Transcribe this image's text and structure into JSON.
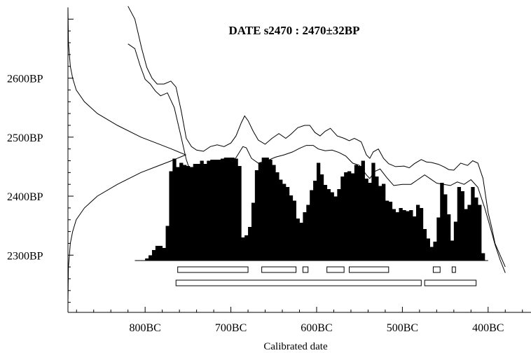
{
  "chart_data": {
    "type": "area",
    "title": "DATE s2470 : 2470±32BP",
    "xlabel": "Calibrated date",
    "ylabel": "",
    "xlim": [
      890,
      350
    ],
    "ylim": [
      2203,
      2717
    ],
    "x_ticks": [
      {
        "value": 800,
        "label": "800BC"
      },
      {
        "value": 700,
        "label": "700BC"
      },
      {
        "value": 600,
        "label": "600BC"
      },
      {
        "value": 500,
        "label": "500BC"
      },
      {
        "value": 400,
        "label": "400BC"
      }
    ],
    "y_ticks": [
      {
        "value": 2600,
        "label": "2600BP"
      },
      {
        "value": 2500,
        "label": "2500BP"
      },
      {
        "value": 2400,
        "label": "2400BP"
      },
      {
        "value": 2300,
        "label": "2300BP"
      }
    ],
    "calibration_curve": {
      "upper": [
        [
          820,
          2722
        ],
        [
          812,
          2700
        ],
        [
          804,
          2650
        ],
        [
          798,
          2618
        ],
        [
          792,
          2600
        ],
        [
          786,
          2590
        ],
        [
          778,
          2590
        ],
        [
          770,
          2595
        ],
        [
          764,
          2585
        ],
        [
          758,
          2545
        ],
        [
          752,
          2498
        ],
        [
          746,
          2484
        ],
        [
          740,
          2478
        ],
        [
          732,
          2476
        ],
        [
          724,
          2484
        ],
        [
          716,
          2487
        ],
        [
          708,
          2484
        ],
        [
          700,
          2490
        ],
        [
          694,
          2502
        ],
        [
          688,
          2524
        ],
        [
          684,
          2536
        ],
        [
          680,
          2528
        ],
        [
          674,
          2510
        ],
        [
          668,
          2495
        ],
        [
          660,
          2488
        ],
        [
          652,
          2498
        ],
        [
          644,
          2506
        ],
        [
          636,
          2498
        ],
        [
          630,
          2505
        ],
        [
          622,
          2516
        ],
        [
          614,
          2520
        ],
        [
          608,
          2520
        ],
        [
          602,
          2508
        ],
        [
          596,
          2502
        ],
        [
          590,
          2510
        ],
        [
          584,
          2515
        ],
        [
          576,
          2502
        ],
        [
          568,
          2498
        ],
        [
          562,
          2494
        ],
        [
          556,
          2498
        ],
        [
          548,
          2492
        ],
        [
          542,
          2470
        ],
        [
          538,
          2464
        ],
        [
          534,
          2475
        ],
        [
          528,
          2480
        ],
        [
          522,
          2464
        ],
        [
          516,
          2455
        ],
        [
          508,
          2450
        ],
        [
          498,
          2451
        ],
        [
          492,
          2448
        ],
        [
          486,
          2455
        ],
        [
          478,
          2462
        ],
        [
          472,
          2458
        ],
        [
          466,
          2457
        ],
        [
          458,
          2454
        ],
        [
          452,
          2450
        ],
        [
          446,
          2445
        ],
        [
          440,
          2444
        ],
        [
          432,
          2456
        ],
        [
          424,
          2452
        ],
        [
          418,
          2460
        ],
        [
          412,
          2456
        ],
        [
          406,
          2430
        ],
        [
          400,
          2372
        ],
        [
          396,
          2348
        ],
        [
          392,
          2320
        ],
        [
          386,
          2300
        ],
        [
          380,
          2280
        ]
      ],
      "lower": [
        [
          820,
          2658
        ],
        [
          812,
          2650
        ],
        [
          806,
          2622
        ],
        [
          800,
          2598
        ],
        [
          794,
          2590
        ],
        [
          788,
          2578
        ],
        [
          782,
          2570
        ],
        [
          774,
          2575
        ],
        [
          766,
          2550
        ],
        [
          758,
          2500
        ],
        [
          752,
          2462
        ],
        [
          746,
          2436
        ],
        [
          738,
          2440
        ],
        [
          728,
          2440
        ],
        [
          718,
          2440
        ],
        [
          708,
          2440
        ],
        [
          700,
          2452
        ],
        [
          692,
          2470
        ],
        [
          686,
          2484
        ],
        [
          682,
          2482
        ],
        [
          676,
          2464
        ],
        [
          668,
          2456
        ],
        [
          658,
          2460
        ],
        [
          648,
          2466
        ],
        [
          638,
          2470
        ],
        [
          628,
          2475
        ],
        [
          620,
          2481
        ],
        [
          612,
          2486
        ],
        [
          604,
          2486
        ],
        [
          598,
          2480
        ],
        [
          590,
          2477
        ],
        [
          582,
          2478
        ],
        [
          574,
          2474
        ],
        [
          566,
          2468
        ],
        [
          558,
          2456
        ],
        [
          550,
          2452
        ],
        [
          542,
          2436
        ],
        [
          538,
          2430
        ],
        [
          532,
          2442
        ],
        [
          526,
          2446
        ],
        [
          518,
          2431
        ],
        [
          510,
          2418
        ],
        [
          500,
          2420
        ],
        [
          490,
          2420
        ],
        [
          482,
          2428
        ],
        [
          474,
          2436
        ],
        [
          468,
          2430
        ],
        [
          460,
          2422
        ],
        [
          452,
          2420
        ],
        [
          444,
          2418
        ],
        [
          436,
          2424
        ],
        [
          428,
          2420
        ],
        [
          420,
          2428
        ],
        [
          412,
          2415
        ],
        [
          404,
          2380
        ],
        [
          398,
          2350
        ],
        [
          392,
          2318
        ],
        [
          386,
          2292
        ],
        [
          380,
          2270
        ]
      ]
    },
    "measured_date": {
      "mean_bp": 2470,
      "error_bp": 32,
      "profile": [
        [
          2720,
          0.0
        ],
        [
          2660,
          0.004
        ],
        [
          2620,
          0.02
        ],
        [
          2600,
          0.04
        ],
        [
          2580,
          0.07
        ],
        [
          2560,
          0.14
        ],
        [
          2540,
          0.25
        ],
        [
          2520,
          0.42
        ],
        [
          2500,
          0.62
        ],
        [
          2490,
          0.75
        ],
        [
          2480,
          0.88
        ],
        [
          2470,
          1.0
        ],
        [
          2460,
          0.88
        ],
        [
          2450,
          0.75
        ],
        [
          2440,
          0.62
        ],
        [
          2420,
          0.42
        ],
        [
          2400,
          0.25
        ],
        [
          2380,
          0.14
        ],
        [
          2360,
          0.07
        ],
        [
          2340,
          0.04
        ],
        [
          2320,
          0.02
        ],
        [
          2280,
          0.004
        ],
        [
          2220,
          0.0
        ]
      ]
    },
    "probability_distribution": {
      "x": [
        800,
        796,
        792,
        788,
        784,
        780,
        776,
        772,
        768,
        764,
        760,
        756,
        752,
        748,
        744,
        740,
        736,
        732,
        728,
        724,
        720,
        716,
        712,
        708,
        704,
        700,
        696,
        692,
        688,
        684,
        680,
        676,
        672,
        668,
        664,
        660,
        656,
        652,
        648,
        644,
        640,
        636,
        632,
        628,
        624,
        620,
        616,
        612,
        608,
        604,
        600,
        596,
        592,
        588,
        584,
        580,
        576,
        572,
        568,
        564,
        560,
        556,
        552,
        548,
        544,
        540,
        536,
        532,
        528,
        524,
        520,
        516,
        512,
        508,
        504,
        500,
        496,
        492,
        488,
        484,
        480,
        476,
        472,
        468,
        464,
        460,
        456,
        452,
        448,
        444,
        440,
        436,
        432,
        428,
        424,
        420,
        416,
        412,
        408
      ],
      "density": [
        0.02,
        0.05,
        0.1,
        0.14,
        0.14,
        0.12,
        0.33,
        0.85,
        0.97,
        0.89,
        0.93,
        0.91,
        0.9,
        0.89,
        0.92,
        0.92,
        0.95,
        0.92,
        0.95,
        0.96,
        0.96,
        0.96,
        0.97,
        0.98,
        0.98,
        0.98,
        0.97,
        0.9,
        0.22,
        0.24,
        0.32,
        0.55,
        0.86,
        0.93,
        0.98,
        0.98,
        0.96,
        0.91,
        0.84,
        0.77,
        0.73,
        0.7,
        0.62,
        0.57,
        0.4,
        0.36,
        0.46,
        0.53,
        0.67,
        0.76,
        0.93,
        0.82,
        0.72,
        0.68,
        0.65,
        0.61,
        0.68,
        0.8,
        0.84,
        0.85,
        0.83,
        0.91,
        0.9,
        0.95,
        0.78,
        0.74,
        0.93,
        0.8,
        0.71,
        0.73,
        0.57,
        0.56,
        0.49,
        0.46,
        0.5,
        0.48,
        0.47,
        0.48,
        0.42,
        0.53,
        0.5,
        0.3,
        0.21,
        0.13,
        0.18,
        0.41,
        0.74,
        0.63,
        0.44,
        0.19,
        0.37,
        0.7,
        0.66,
        0.49,
        0.53,
        0.7,
        0.6,
        0.53,
        0.07
      ]
    },
    "hpd_ranges": {
      "row1": [
        [
          762,
          680
        ],
        [
          664,
          624
        ],
        [
          616,
          610
        ],
        [
          588,
          568
        ],
        [
          562,
          516
        ],
        [
          464,
          456
        ],
        [
          442,
          438
        ]
      ],
      "row2": [
        [
          764,
          478
        ],
        [
          474,
          414
        ]
      ]
    }
  }
}
